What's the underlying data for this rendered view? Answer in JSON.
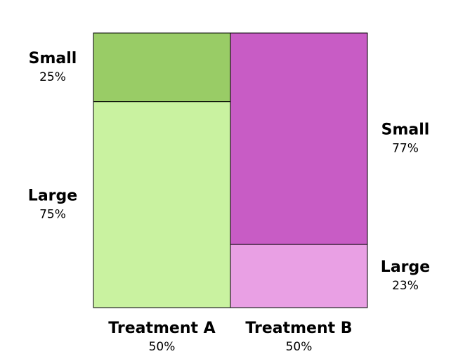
{
  "chart_data": {
    "type": "mosaic",
    "title": "",
    "categories": [
      "Treatment A",
      "Treatment B"
    ],
    "category_shares": [
      "50%",
      "50%"
    ],
    "category_values": [
      50,
      50
    ],
    "columns": [
      {
        "name": "Treatment A",
        "share": "50%",
        "segments": [
          {
            "name": "Small",
            "value": 25,
            "label": "25%",
            "color": "#99cc66"
          },
          {
            "name": "Large",
            "value": 75,
            "label": "75%",
            "color": "#c9f2a0"
          }
        ]
      },
      {
        "name": "Treatment B",
        "share": "50%",
        "segments": [
          {
            "name": "Small",
            "value": 77,
            "label": "77%",
            "color": "#c85cc5"
          },
          {
            "name": "Large",
            "value": 23,
            "label": "23%",
            "color": "#e9a0e4"
          }
        ]
      }
    ]
  }
}
